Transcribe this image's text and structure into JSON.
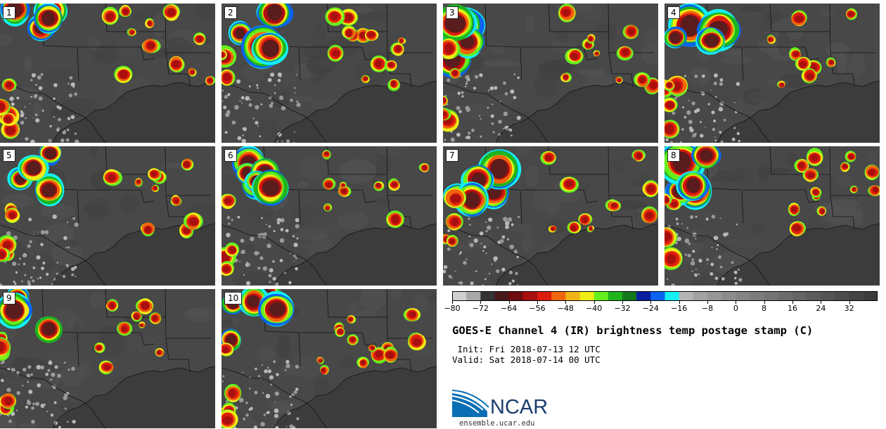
{
  "panels": [
    {
      "label": "1"
    },
    {
      "label": "2"
    },
    {
      "label": "3"
    },
    {
      "label": "4"
    },
    {
      "label": "5"
    },
    {
      "label": "6"
    },
    {
      "label": "7"
    },
    {
      "label": "8"
    },
    {
      "label": "9"
    },
    {
      "label": "10"
    }
  ],
  "colorbar": {
    "tick_labels": [
      "−80",
      "−72",
      "−64",
      "−56",
      "−48",
      "−40",
      "−32",
      "−24",
      "−16",
      "−8",
      "0",
      "8",
      "16",
      "24",
      "32"
    ],
    "tick_values": [
      -80,
      -72,
      -64,
      -56,
      -48,
      -40,
      -32,
      -24,
      -16,
      -8,
      0,
      8,
      16,
      24,
      32
    ],
    "min": -80,
    "max": 40,
    "step": 4,
    "colors": [
      "#d0d0d0",
      "#a8a8a8",
      "#343434",
      "#4a1a1a",
      "#6e0d0d",
      "#a80f0f",
      "#dc1c0c",
      "#f0660c",
      "#f0b414",
      "#f0ec14",
      "#64f01e",
      "#1eb41e",
      "#14781e",
      "#0a1ea0",
      "#0a64f0",
      "#14f0f0",
      "#b4b4b4",
      "#a2a2a2",
      "#969696",
      "#8c8c8c",
      "#848484",
      "#7c7c7c",
      "#747474",
      "#6c6c6c",
      "#646464",
      "#5c5c5c",
      "#545454",
      "#4c4c4c",
      "#444444",
      "#3c3c3c"
    ]
  },
  "title": "GOES-E Channel 4 (IR) brightness temp postage stamp (C)",
  "init_line": " Init: Fri 2018-07-13 12 UTC",
  "valid_line": "Valid: Sat 2018-07-14 00 UTC",
  "logo": {
    "name": "NCAR",
    "url": "ensemble.ucar.edu"
  },
  "colors": {
    "map_base": "#4a4a4a",
    "coast": "#111111",
    "storm_core": "#5a1414"
  }
}
